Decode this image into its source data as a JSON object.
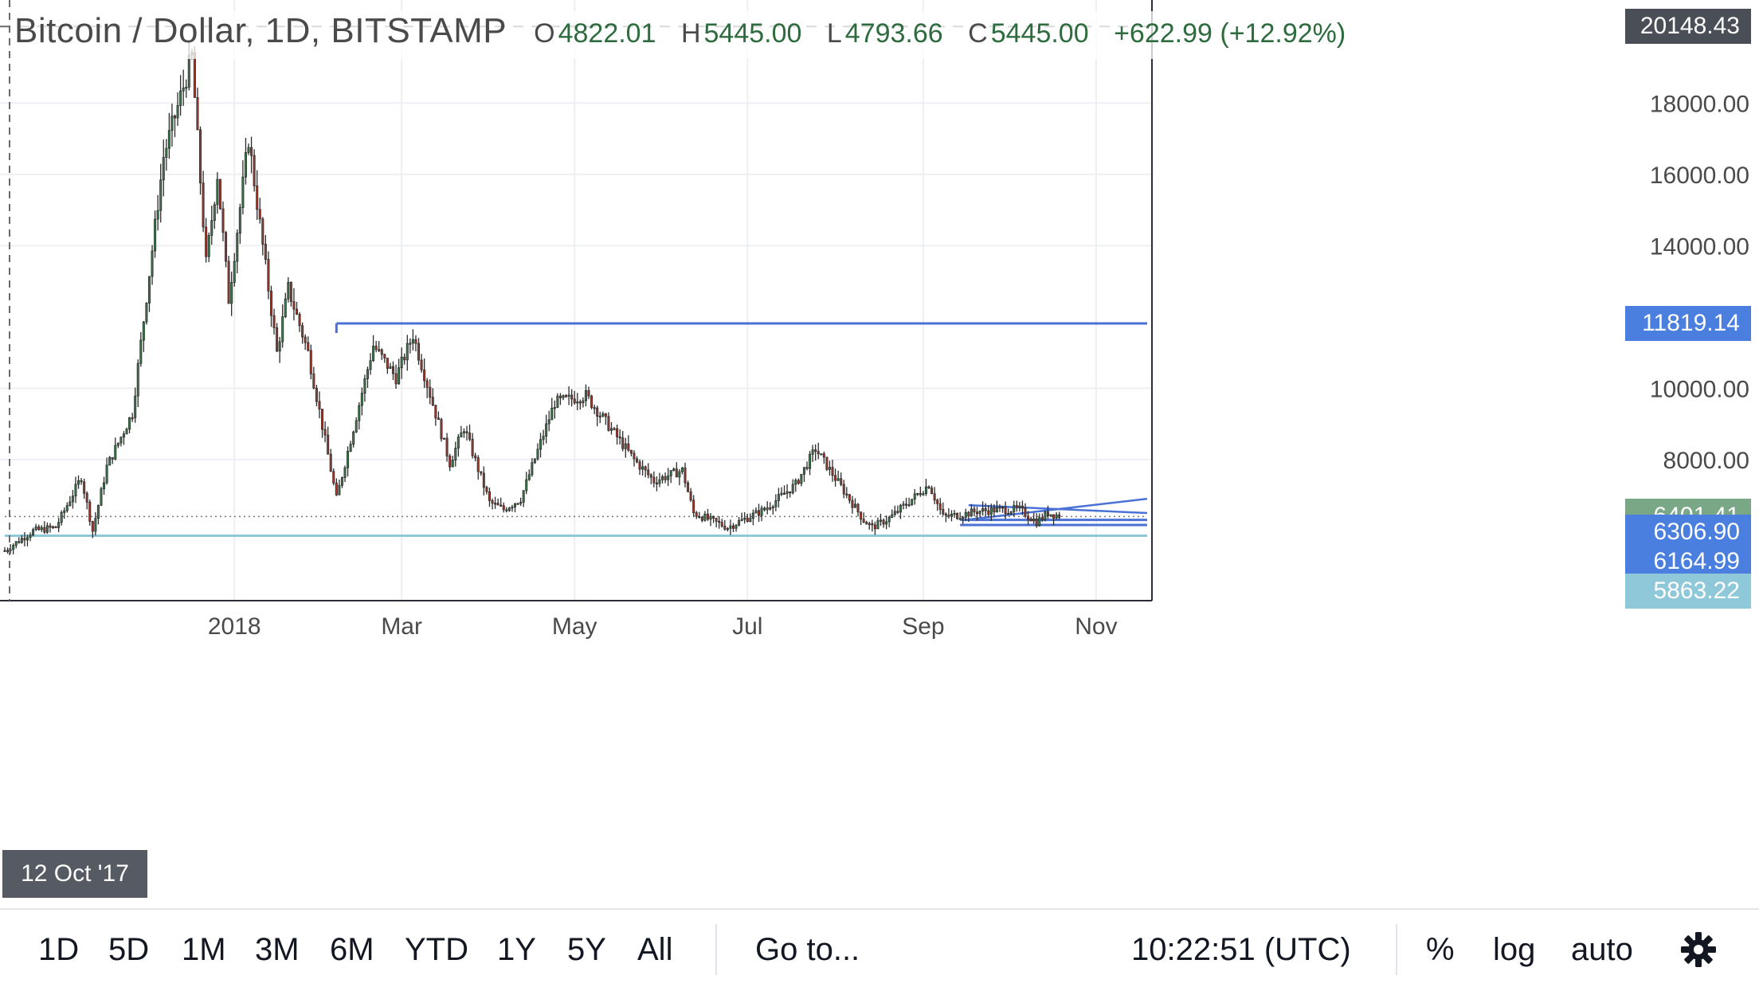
{
  "legend": {
    "title": "Bitcoin / Dollar, 1D, BITSTAMP",
    "open_key": "O",
    "open": "4822.01",
    "high_key": "H",
    "high": "5445.00",
    "low_key": "L",
    "low": "4793.66",
    "close_key": "C",
    "close": "5445.00",
    "change": "+622.99 (+12.92%)"
  },
  "toolbar": {
    "ranges": [
      "1D",
      "5D",
      "1M",
      "3M",
      "6M",
      "YTD",
      "1Y",
      "5Y",
      "All"
    ],
    "goto_label": "Go to...",
    "clock": "10:22:51 (UTC)",
    "percent_label": "%",
    "log_label": "log",
    "auto_label": "auto",
    "settings_icon": "gear-icon"
  },
  "crosshair_date": "12 Oct '17",
  "price_badges": [
    {
      "value": "20148.43",
      "color": "#4a4f57"
    },
    {
      "value": "11819.14",
      "color": "#4a7fe0"
    },
    {
      "value": "6401.41",
      "color": "#7aa886"
    },
    {
      "value": "6306.90",
      "color": "#4a7fe0"
    },
    {
      "value": "6164.99",
      "color": "#4a7fe0"
    },
    {
      "value": "5863.22",
      "color": "#8fc8d8"
    }
  ],
  "chart_data": {
    "type": "candlestick",
    "title": "Bitcoin / Dollar, 1D, BITSTAMP",
    "x_axis_labels": [
      "2018",
      "Mar",
      "May",
      "Jul",
      "Sep",
      "Nov"
    ],
    "y_axis_labels": [
      "18000.00",
      "16000.00",
      "14000.00",
      "10000.00",
      "8000.00"
    ],
    "ylim": [
      4400,
      20400
    ],
    "xlim": [
      "2017-10-12",
      "2018-11-19"
    ],
    "colors": {
      "up": "#3f7d4f",
      "down": "#a83a2d",
      "trendline": "#4a72d6",
      "support": "#8fc8d8",
      "crosshair": "#6b6b6b"
    },
    "trend_levels": [
      {
        "price": 11819.14,
        "from": "2018-02-06",
        "to": "2018-11-19"
      },
      {
        "price": 6306.9,
        "from": "2018-09-14",
        "to": "2018-11-19"
      },
      {
        "price": 6164.99,
        "from": "2018-09-14",
        "to": "2018-11-19"
      },
      {
        "price": 5863.22,
        "from": "2017-10-12",
        "to": "2018-11-19"
      },
      {
        "price": 6401.41,
        "from": "2017-10-12",
        "to": "2018-11-19",
        "style": "dotted"
      }
    ],
    "trend_lines": [
      {
        "from": [
          "2018-09-17",
          6720
        ],
        "to": [
          "2018-11-19",
          6500
        ]
      },
      {
        "from": [
          "2018-09-17",
          6320
        ],
        "to": [
          "2018-11-19",
          6900
        ]
      }
    ],
    "anchors": [
      [
        "2017-10-12",
        5450
      ],
      [
        "2017-10-22",
        6000
      ],
      [
        "2017-10-30",
        6100
      ],
      [
        "2017-11-08",
        7500
      ],
      [
        "2017-11-12",
        6000
      ],
      [
        "2017-11-17",
        7800
      ],
      [
        "2017-11-26",
        9300
      ],
      [
        "2017-12-07",
        16500
      ],
      [
        "2017-12-17",
        19300
      ],
      [
        "2017-12-22",
        13500
      ],
      [
        "2017-12-26",
        16000
      ],
      [
        "2017-12-30",
        12500
      ],
      [
        "2018-01-06",
        17000
      ],
      [
        "2018-01-16",
        11000
      ],
      [
        "2018-01-20",
        12800
      ],
      [
        "2018-01-27",
        11000
      ],
      [
        "2018-02-06",
        6900
      ],
      [
        "2018-02-19",
        11200
      ],
      [
        "2018-02-27",
        10300
      ],
      [
        "2018-03-05",
        11500
      ],
      [
        "2018-03-18",
        7900
      ],
      [
        "2018-03-23",
        8900
      ],
      [
        "2018-04-01",
        6800
      ],
      [
        "2018-04-06",
        6600
      ],
      [
        "2018-04-12",
        6900
      ],
      [
        "2018-04-24",
        9600
      ],
      [
        "2018-05-05",
        9800
      ],
      [
        "2018-05-22",
        8000
      ],
      [
        "2018-05-29",
        7400
      ],
      [
        "2018-06-08",
        7700
      ],
      [
        "2018-06-12",
        6500
      ],
      [
        "2018-06-24",
        6100
      ],
      [
        "2018-07-07",
        6600
      ],
      [
        "2018-07-18",
        7300
      ],
      [
        "2018-07-25",
        8300
      ],
      [
        "2018-08-11",
        6300
      ],
      [
        "2018-08-14",
        6100
      ],
      [
        "2018-08-20",
        6350
      ],
      [
        "2018-09-03",
        7300
      ],
      [
        "2018-09-08",
        6400
      ],
      [
        "2018-09-14",
        6450
      ],
      [
        "2018-09-20",
        6550
      ],
      [
        "2018-09-28",
        6600
      ],
      [
        "2018-10-05",
        6600
      ],
      [
        "2018-10-11",
        6250
      ],
      [
        "2018-10-15",
        6500
      ],
      [
        "2018-10-19",
        6430
      ]
    ]
  }
}
